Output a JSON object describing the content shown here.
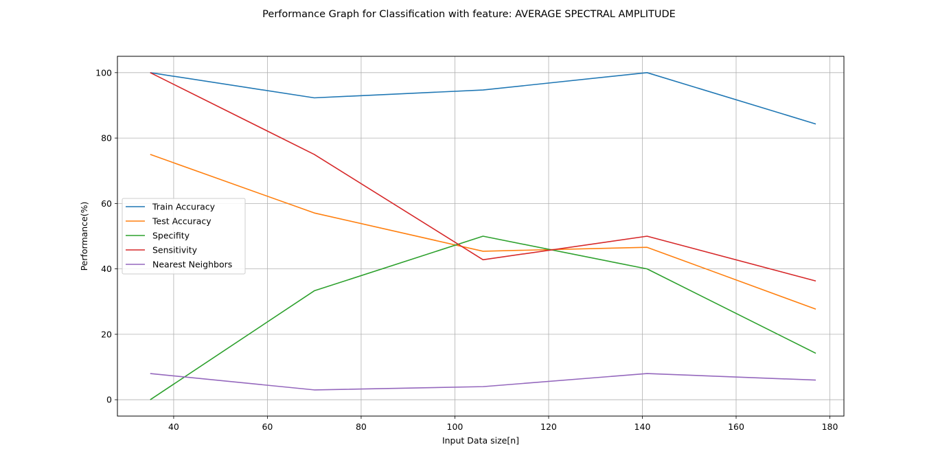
{
  "chart_data": {
    "type": "line",
    "title": "Performance Graph for Classification with feature: AVERAGE SPECTRAL AMPLITUDE",
    "xlabel": "Input Data size[n]",
    "ylabel": "Performance(%)",
    "xlim": [
      28,
      183
    ],
    "ylim": [
      -5,
      105
    ],
    "xticks": [
      40,
      60,
      80,
      100,
      120,
      140,
      160,
      180
    ],
    "yticks": [
      0,
      20,
      40,
      60,
      80,
      100
    ],
    "grid": true,
    "legend_position": "center-left",
    "x": [
      35,
      70,
      106,
      141,
      177
    ],
    "series": [
      {
        "name": "Train Accuracy",
        "color": "#1f77b4",
        "values": [
          100,
          92.3,
          94.7,
          100,
          84.3
        ]
      },
      {
        "name": "Test Accuracy",
        "color": "#ff7f0e",
        "values": [
          75,
          57.1,
          45.4,
          46.6,
          27.7
        ]
      },
      {
        "name": "Specifity",
        "color": "#2ca02c",
        "values": [
          0,
          33.3,
          50,
          40,
          14.2
        ]
      },
      {
        "name": "Sensitivity",
        "color": "#d62728",
        "values": [
          100,
          75,
          42.8,
          50,
          36.3
        ]
      },
      {
        "name": "Nearest Neighbors",
        "color": "#9467bd",
        "values": [
          8,
          3,
          4,
          8,
          6
        ]
      }
    ]
  }
}
